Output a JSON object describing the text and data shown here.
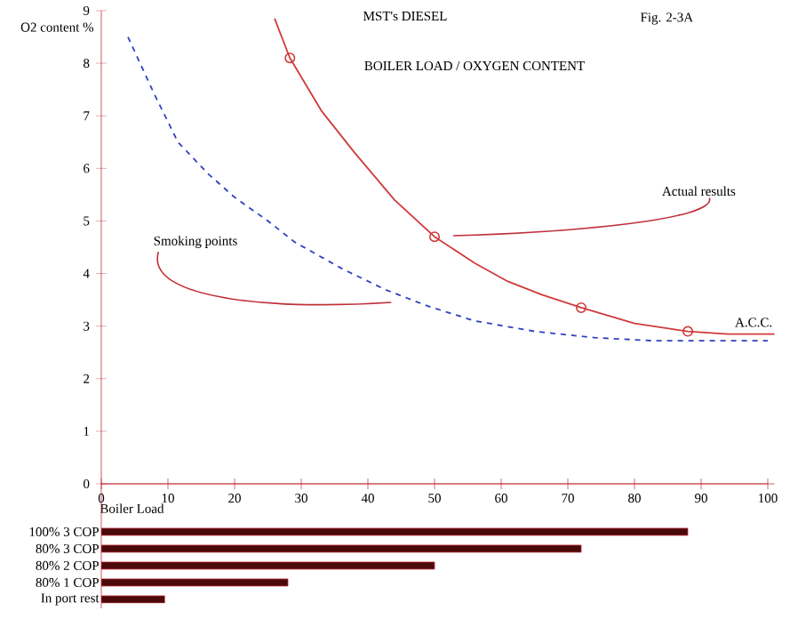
{
  "chart_data": [
    {
      "type": "line",
      "title": "BOILER     LOAD / OXYGEN   CONTENT",
      "subtitle": "MST's      DIESEL",
      "xlabel": "Boiler Load",
      "ylabel": "O2 content %",
      "tick_labels": "y",
      "xlim": [
        0,
        101
      ],
      "xticks": [
        0,
        10,
        20,
        30,
        40,
        50,
        60,
        70,
        80,
        90,
        100
      ],
      "ylim": [
        0,
        9
      ],
      "yticks": [
        0,
        1,
        2,
        3,
        4,
        5,
        6,
        7,
        8,
        9
      ],
      "series": [
        {
          "type": "line",
          "color": "#d03a3a",
          "line_style": "solid",
          "x": [
            26,
            28.3,
            33,
            38,
            44,
            50,
            56,
            61,
            66,
            72,
            80,
            88,
            94,
            101
          ],
          "values": [
            8.85,
            8.1,
            7.1,
            6.3,
            5.4,
            4.7,
            4.2,
            3.85,
            3.6,
            3.35,
            3.05,
            2.9,
            2.85,
            2.85
          ]
        },
        {
          "type": "scatter",
          "color": "#d03a3a",
          "marker": "circle",
          "x": [
            28.3,
            50,
            72,
            88
          ],
          "values": [
            8.1,
            4.7,
            3.35,
            2.9
          ]
        },
        {
          "type": "line",
          "color": "#3040c0",
          "line_style": "dashed",
          "x": [
            4,
            8,
            11.5,
            16,
            20,
            25,
            29,
            36,
            42.5,
            49,
            56,
            65,
            74,
            83,
            100
          ],
          "values": [
            8.5,
            7.4,
            6.5,
            5.9,
            5.45,
            5.0,
            4.6,
            4.1,
            3.7,
            3.38,
            3.1,
            2.9,
            2.78,
            2.72,
            2.72
          ]
        }
      ],
      "annotations": [
        "Fig. 2-3A",
        "Actual results",
        "Smoking points",
        {
          "text": "A.C.C.",
          "x": 101,
          "y": 2.85
        }
      ]
    },
    {
      "type": "bar",
      "orientation": "horizontal",
      "categories": [
        "100% 3 COP",
        "80% 3 COP",
        "80% 2 COP",
        "80% 1 COP",
        "In port rest"
      ],
      "values": [
        88,
        72,
        50,
        28,
        9.5
      ],
      "color": "#4a0a0a",
      "xlim": [
        0,
        100
      ],
      "xticks": [
        0,
        10,
        20,
        30,
        40,
        50,
        60,
        70,
        80,
        90,
        100
      ]
    }
  ]
}
